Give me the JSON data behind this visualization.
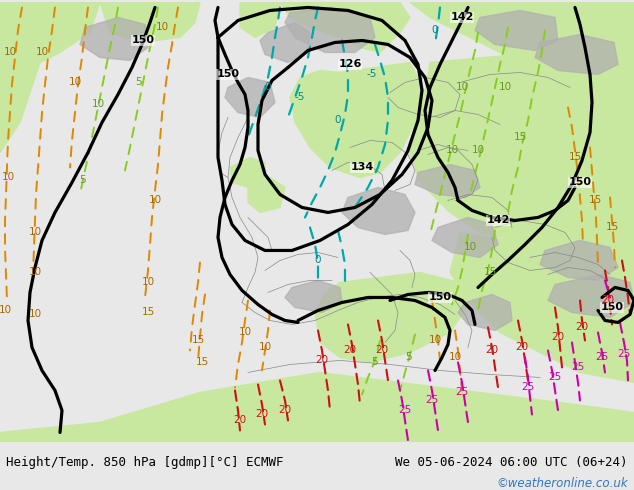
{
  "title_left": "Height/Temp. 850 hPa [gdmp][°C] ECMWF",
  "title_right": "We 05-06-2024 06:00 UTC (06+24)",
  "credit": "©weatheronline.co.uk",
  "bg_ocean": "#d8d8d8",
  "bg_land_green": "#c8e8a0",
  "bg_land_gray": "#b0b0b0",
  "bottom_bar_color": "#e8e8e8",
  "credit_color": "#3377bb",
  "title_fontsize": 9.0
}
